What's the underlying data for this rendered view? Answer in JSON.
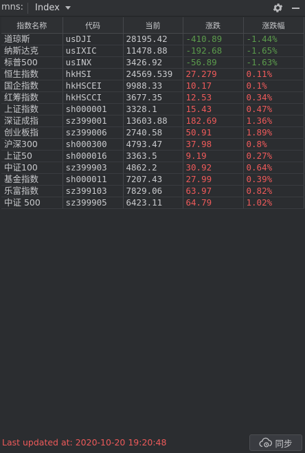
{
  "toolbar": {
    "label": "mns:",
    "view_selector": "Index",
    "settings_icon": "gear-icon",
    "minimize_icon": "minimize-icon"
  },
  "table": {
    "columns": [
      "指数名称",
      "代码",
      "当前",
      "涨跌",
      "涨跌幅"
    ],
    "rows": [
      {
        "name": "道琼斯",
        "code": "usDJI",
        "current": "28195.42",
        "change": "-410.89",
        "pct": "-1.44%",
        "dir": "down"
      },
      {
        "name": "纳斯达克",
        "code": "usIXIC",
        "current": "11478.88",
        "change": "-192.68",
        "pct": "-1.65%",
        "dir": "down"
      },
      {
        "name": "标普500",
        "code": "usINX",
        "current": "3426.92",
        "change": "-56.89",
        "pct": "-1.63%",
        "dir": "down"
      },
      {
        "name": "恒生指数",
        "code": "hkHSI",
        "current": "24569.539",
        "change": "27.279",
        "pct": "0.11%",
        "dir": "up"
      },
      {
        "name": "国企指数",
        "code": "hkHSCEI",
        "current": "9988.33",
        "change": "10.17",
        "pct": "0.1%",
        "dir": "up"
      },
      {
        "name": "红筹指数",
        "code": "hkHSCCI",
        "current": "3677.35",
        "change": "12.53",
        "pct": "0.34%",
        "dir": "up"
      },
      {
        "name": "上证指数",
        "code": "sh000001",
        "current": "3328.1",
        "change": "15.43",
        "pct": "0.47%",
        "dir": "up"
      },
      {
        "name": "深证成指",
        "code": "sz399001",
        "current": "13603.88",
        "change": "182.69",
        "pct": "1.36%",
        "dir": "up"
      },
      {
        "name": "创业板指",
        "code": "sz399006",
        "current": "2740.58",
        "change": "50.91",
        "pct": "1.89%",
        "dir": "up"
      },
      {
        "name": "沪深300",
        "code": "sh000300",
        "current": "4793.47",
        "change": "37.98",
        "pct": "0.8%",
        "dir": "up"
      },
      {
        "name": "上证50",
        "code": "sh000016",
        "current": "3363.5",
        "change": "9.19",
        "pct": "0.27%",
        "dir": "up"
      },
      {
        "name": "中证100",
        "code": "sz399903",
        "current": "4862.2",
        "change": "30.92",
        "pct": "0.64%",
        "dir": "up"
      },
      {
        "name": "基金指数",
        "code": "sh000011",
        "current": "7207.43",
        "change": "27.99",
        "pct": "0.39%",
        "dir": "up"
      },
      {
        "name": "乐富指数",
        "code": "sz399103",
        "current": "7829.06",
        "change": "63.97",
        "pct": "0.82%",
        "dir": "up"
      },
      {
        "name": "中证 500",
        "code": "sz399905",
        "current": "6423.11",
        "change": "64.79",
        "pct": "1.02%",
        "dir": "up"
      }
    ]
  },
  "footer": {
    "status_text": "Last updated at: 2020-10-20 19:20:48",
    "sync_label": "同步",
    "sync_icon": "cloud-sync-icon"
  },
  "colors": {
    "up": "#ee5a5a",
    "down": "#5b9b4c",
    "background": "#2b2d30"
  }
}
